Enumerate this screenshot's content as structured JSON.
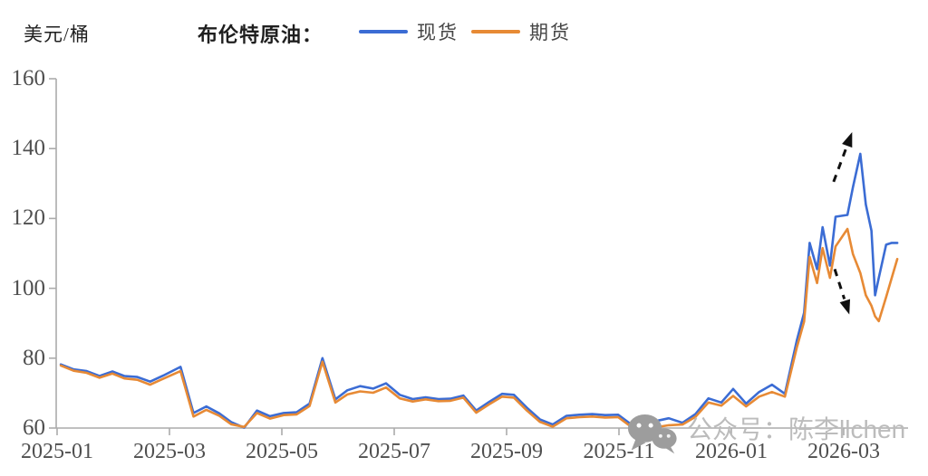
{
  "header": {
    "unit_label": "美元/桶",
    "title": "布伦特原油：",
    "legend": [
      {
        "label": "现货",
        "color": "#3b6cd4"
      },
      {
        "label": "期货",
        "color": "#e78a35"
      }
    ]
  },
  "watermark": {
    "icon": "wechat-icon",
    "text": "公众号：陈李llchen"
  },
  "colors": {
    "spot": "#3b6cd4",
    "futures": "#e78a35",
    "axis": "#ababab",
    "tick_text": "#4f4f4f",
    "annotation_arrow": "#111111"
  },
  "chart_data": {
    "type": "line",
    "title": "布伦特原油",
    "ylabel": "美元/桶",
    "xlabel": "",
    "ylim": [
      60,
      160
    ],
    "y_ticks": [
      60,
      80,
      100,
      120,
      140,
      160
    ],
    "x_ticks": [
      "2025-01",
      "2025-03",
      "2025-05",
      "2025-07",
      "2025-09",
      "2025-11",
      "2026-01",
      "2026-03"
    ],
    "x_axis_start": "2025-01-01",
    "x_axis_end": "2026-04-15",
    "grid": false,
    "legend_position": "top",
    "dates": [
      "2025-01-03",
      "2025-01-10",
      "2025-01-17",
      "2025-01-24",
      "2025-01-31",
      "2025-02-07",
      "2025-02-14",
      "2025-02-21",
      "2025-02-28",
      "2025-03-07",
      "2025-03-14",
      "2025-03-21",
      "2025-03-28",
      "2025-04-04",
      "2025-04-11",
      "2025-04-18",
      "2025-04-25",
      "2025-05-02",
      "2025-05-09",
      "2025-05-16",
      "2025-05-23",
      "2025-05-30",
      "2025-06-06",
      "2025-06-13",
      "2025-06-20",
      "2025-06-27",
      "2025-07-04",
      "2025-07-11",
      "2025-07-18",
      "2025-07-25",
      "2025-08-01",
      "2025-08-08",
      "2025-08-15",
      "2025-08-22",
      "2025-08-29",
      "2025-09-05",
      "2025-09-12",
      "2025-09-19",
      "2025-09-26",
      "2025-10-03",
      "2025-10-10",
      "2025-10-17",
      "2025-10-24",
      "2025-10-31",
      "2025-11-07",
      "2025-11-14",
      "2025-11-21",
      "2025-11-28",
      "2025-12-05",
      "2025-12-12",
      "2025-12-19",
      "2025-12-26",
      "2026-01-02",
      "2026-01-09",
      "2026-01-16",
      "2026-01-23",
      "2026-01-30",
      "2026-02-06",
      "2026-02-10",
      "2026-02-13",
      "2026-02-17",
      "2026-02-20",
      "2026-02-24",
      "2026-02-27",
      "2026-03-03",
      "2026-03-06",
      "2026-03-10",
      "2026-03-13",
      "2026-03-16",
      "2026-03-18",
      "2026-03-20",
      "2026-03-24",
      "2026-03-27",
      "2026-03-30"
    ],
    "series": [
      {
        "name": "现货",
        "color": "#3b6cd4",
        "values": [
          78.2,
          76.8,
          76.3,
          74.9,
          76.2,
          74.9,
          74.6,
          73.3,
          75.0,
          77.5,
          64.3,
          66.2,
          64.2,
          61.7,
          60.1,
          65.0,
          63.4,
          64.3,
          64.5,
          67.0,
          80.0,
          68.2,
          70.8,
          72.0,
          71.3,
          72.8,
          69.5,
          68.3,
          68.8,
          68.3,
          68.4,
          69.3,
          65.0,
          67.5,
          69.8,
          69.5,
          65.8,
          62.5,
          61.0,
          63.5,
          63.8,
          64.0,
          63.7,
          63.8,
          61.3,
          60.8,
          62.0,
          62.8,
          61.5,
          64.0,
          68.5,
          67.3,
          71.2,
          67.0,
          70.3,
          72.4,
          69.8,
          85.0,
          93.0,
          113.0,
          105.5,
          117.5,
          106.5,
          120.5,
          121.0,
          129.0,
          138.5,
          124.0,
          116.5,
          98.0,
          103.0,
          112.5,
          113.0,
          113.0
        ]
      },
      {
        "name": "期货",
        "color": "#e78a35",
        "values": [
          77.9,
          76.4,
          75.8,
          74.4,
          75.6,
          74.2,
          73.8,
          72.4,
          74.1,
          76.3,
          63.3,
          65.2,
          63.5,
          61.1,
          60.3,
          64.3,
          62.7,
          63.7,
          63.9,
          66.3,
          79.0,
          67.3,
          69.6,
          70.5,
          70.1,
          71.6,
          68.5,
          67.6,
          68.2,
          67.7,
          67.8,
          68.7,
          64.4,
          66.8,
          69.0,
          68.7,
          65.0,
          61.8,
          60.4,
          62.8,
          63.1,
          63.3,
          63.0,
          63.1,
          60.6,
          60.1,
          60.2,
          60.8,
          61.0,
          63.2,
          67.3,
          66.4,
          69.2,
          66.2,
          69.0,
          70.3,
          69.0,
          83.0,
          90.5,
          109.0,
          101.5,
          111.5,
          103.0,
          112.0,
          117.0,
          109.8,
          104.4,
          98.0,
          95.0,
          92.0,
          90.6,
          97.5,
          103.0,
          108.4
        ]
      }
    ],
    "annotations": [
      {
        "type": "arrow",
        "direction": "up",
        "from": {
          "month": 13.82,
          "value": 130.5
        },
        "to": {
          "month": 14.15,
          "value": 144.7
        }
      },
      {
        "type": "arrow",
        "direction": "down",
        "from": {
          "month": 13.84,
          "value": 105.5
        },
        "to": {
          "month": 14.1,
          "value": 92.5
        }
      }
    ]
  }
}
